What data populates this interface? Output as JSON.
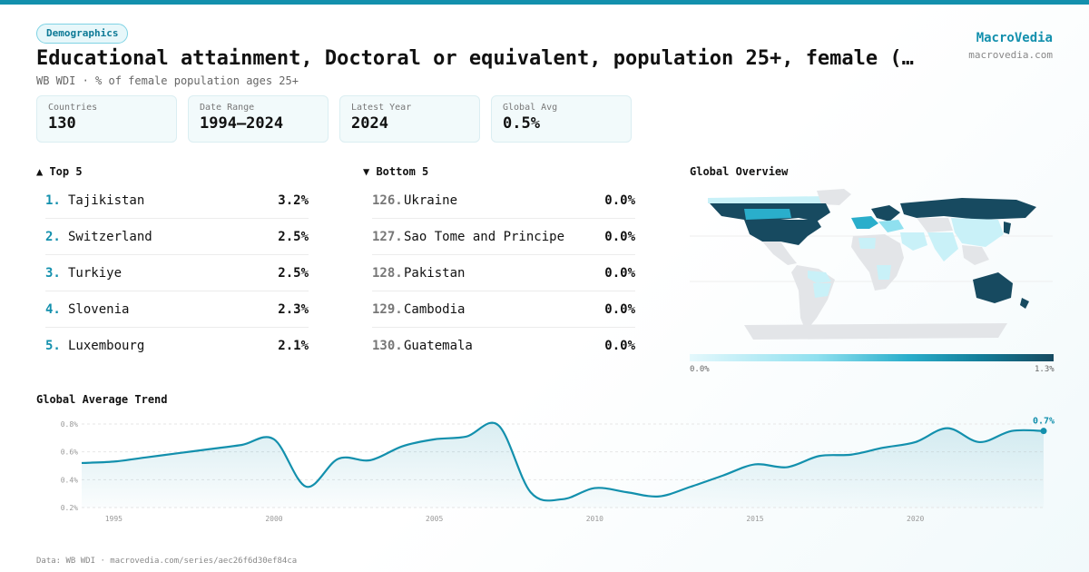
{
  "header": {
    "badge": "Demographics",
    "title": "Educational attainment, Doctoral or equivalent, population 25+, female (…",
    "subtitle": "WB WDI · % of female population ages 25+"
  },
  "brand": {
    "name": "MacroVedia",
    "url": "macrovedia.com"
  },
  "stats": [
    {
      "label": "Countries",
      "value": "130"
    },
    {
      "label": "Date Range",
      "value": "1994–2024"
    },
    {
      "label": "Latest Year",
      "value": "2024"
    },
    {
      "label": "Global Avg",
      "value": "0.5%"
    }
  ],
  "top5": {
    "heading": "▲ Top 5",
    "items": [
      {
        "rank": "1.",
        "name": "Tajikistan",
        "value": "3.2%"
      },
      {
        "rank": "2.",
        "name": "Switzerland",
        "value": "2.5%"
      },
      {
        "rank": "3.",
        "name": "Turkiye",
        "value": "2.5%"
      },
      {
        "rank": "4.",
        "name": "Slovenia",
        "value": "2.3%"
      },
      {
        "rank": "5.",
        "name": "Luxembourg",
        "value": "2.1%"
      }
    ]
  },
  "bottom5": {
    "heading": "▼ Bottom 5",
    "items": [
      {
        "rank": "126.",
        "name": "Ukraine",
        "value": "0.0%"
      },
      {
        "rank": "127.",
        "name": "Sao Tome and Principe",
        "value": "0.0%"
      },
      {
        "rank": "128.",
        "name": "Pakistan",
        "value": "0.0%"
      },
      {
        "rank": "129.",
        "name": "Cambodia",
        "value": "0.0%"
      },
      {
        "rank": "130.",
        "name": "Guatemala",
        "value": "0.0%"
      }
    ]
  },
  "map": {
    "title": "Global Overview",
    "legend_min": "0.0%",
    "legend_max": "1.3%",
    "colors": {
      "none": "#e3e5e8",
      "low": "#c9f1f8",
      "mid": "#2aaecb",
      "high": "#174a60"
    }
  },
  "trend_title": "Global Average Trend",
  "footer": "Data: WB WDI · macrovedia.com/series/aec26f6d30ef84ca",
  "chart_data": {
    "type": "area",
    "title": "Global Average Trend",
    "xlabel": "",
    "ylabel": "",
    "x": [
      1994,
      1995,
      1996,
      1997,
      1998,
      1999,
      2000,
      2001,
      2002,
      2003,
      2004,
      2005,
      2006,
      2007,
      2008,
      2009,
      2010,
      2011,
      2012,
      2013,
      2014,
      2015,
      2016,
      2017,
      2018,
      2019,
      2020,
      2021,
      2022,
      2023,
      2024
    ],
    "values": [
      0.52,
      0.53,
      0.56,
      0.59,
      0.62,
      0.65,
      0.69,
      0.35,
      0.55,
      0.54,
      0.64,
      0.69,
      0.71,
      0.79,
      0.31,
      0.26,
      0.34,
      0.31,
      0.28,
      0.35,
      0.43,
      0.51,
      0.49,
      0.57,
      0.58,
      0.63,
      0.67,
      0.77,
      0.67,
      0.75,
      0.75
    ],
    "yticks": [
      0.2,
      0.4,
      0.6,
      0.8
    ],
    "ytick_labels": [
      "0.2%",
      "0.4%",
      "0.6%",
      "0.8%"
    ],
    "xticks": [
      1995,
      2000,
      2005,
      2010,
      2015,
      2020
    ],
    "xtick_labels": [
      "1995",
      "2000",
      "2005",
      "2010",
      "2015",
      "2020"
    ],
    "ylim": [
      0.2,
      0.8
    ],
    "xlim": [
      1994,
      2024
    ],
    "end_label": "0.7%",
    "color": "#1390ad"
  }
}
